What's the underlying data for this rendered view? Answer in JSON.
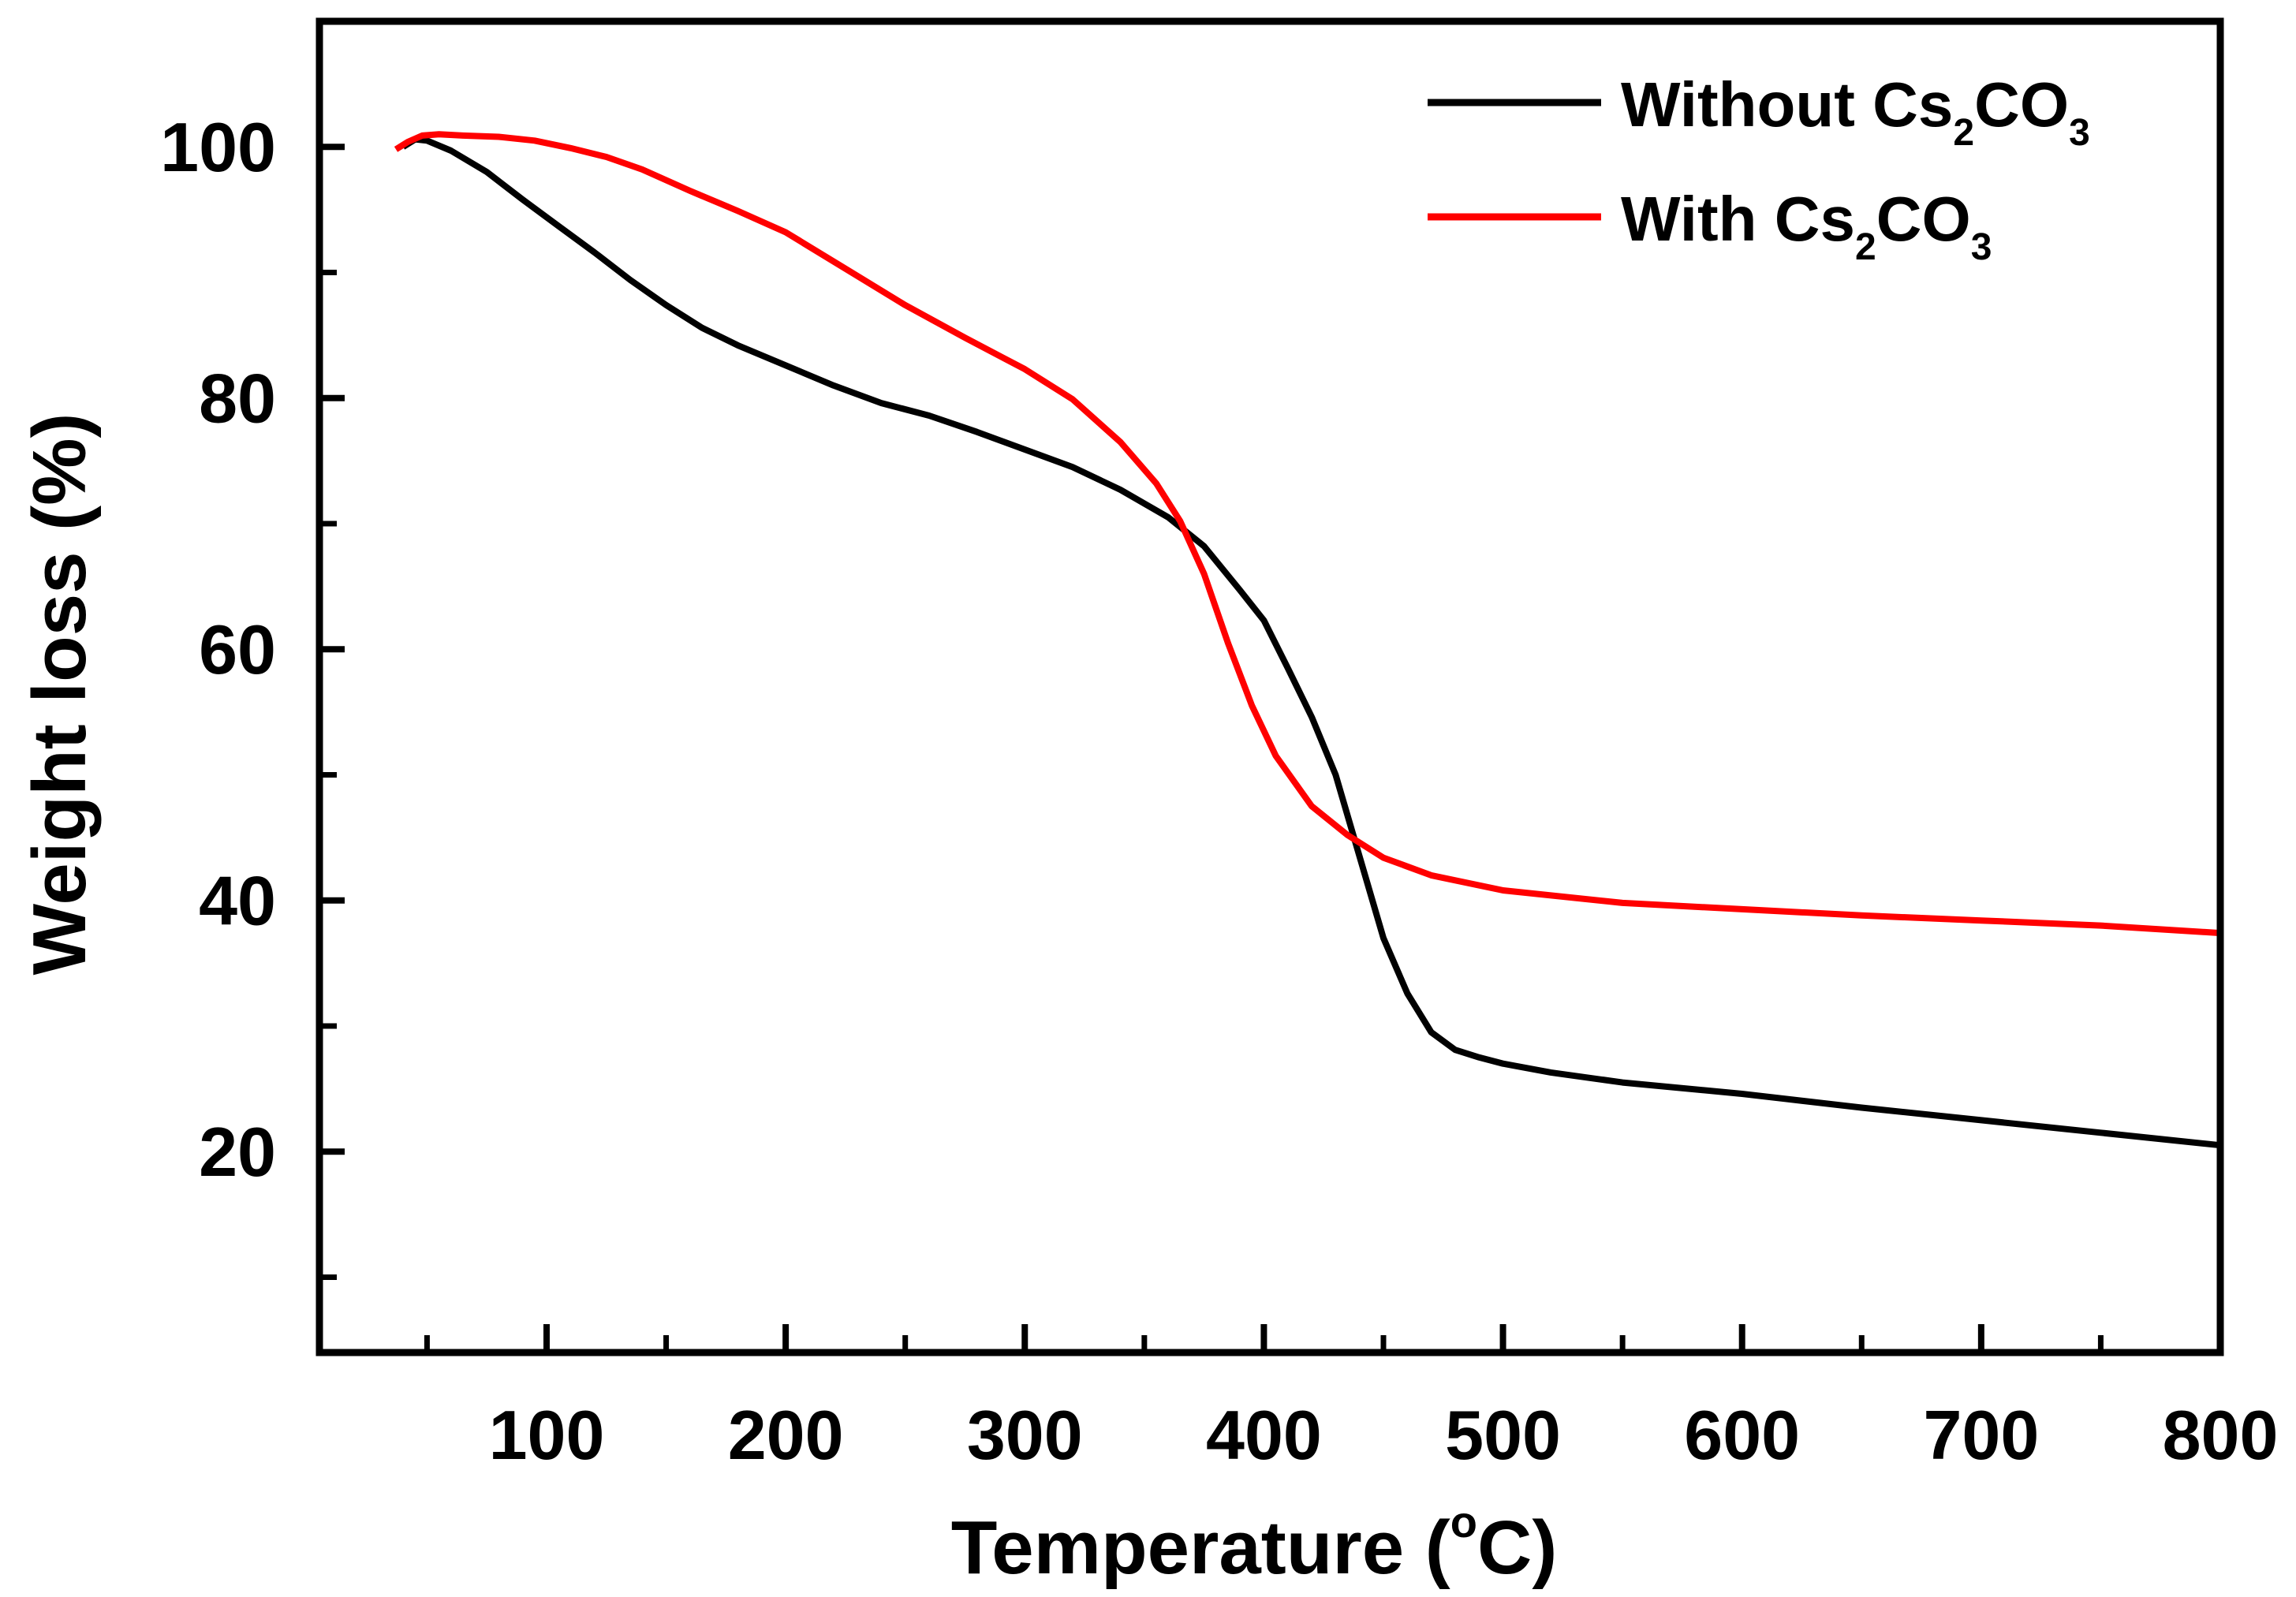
{
  "chart_data": {
    "type": "line",
    "title": "",
    "xlabel": "Temperature (",
    "xlabel_sup": "o",
    "xlabel_tail": "C)",
    "ylabel": "Weight loss (%)",
    "xlim": [
      5,
      800
    ],
    "ylim": [
      4,
      110
    ],
    "x_ticks": [
      100,
      200,
      300,
      400,
      500,
      600,
      700,
      800
    ],
    "x_minor_ticks": [
      50,
      150,
      250,
      350,
      450,
      550,
      650,
      750
    ],
    "y_ticks": [
      20,
      40,
      60,
      80,
      100
    ],
    "y_minor_ticks": [
      10,
      30,
      50,
      70,
      90
    ],
    "grid": false,
    "legend_position": "top-right",
    "series": [
      {
        "name": "Without Cs2CO3",
        "legend_main": "Without Cs",
        "legend_sub": "2",
        "legend_mid": "CO",
        "legend_sub2": "3",
        "color": "#000000",
        "x": [
          40,
          45,
          50,
          60,
          75,
          90,
          105,
          120,
          135,
          150,
          165,
          180,
          200,
          220,
          240,
          260,
          280,
          300,
          320,
          340,
          360,
          375,
          390,
          400,
          410,
          420,
          430,
          440,
          450,
          460,
          470,
          480,
          490,
          500,
          520,
          550,
          600,
          650,
          700,
          750,
          800
        ],
        "y": [
          100,
          100.6,
          100.5,
          99.7,
          98,
          95.8,
          93.7,
          91.6,
          89.4,
          87.4,
          85.6,
          84.2,
          82.6,
          81,
          79.6,
          78.6,
          77.3,
          75.9,
          74.5,
          72.7,
          70.5,
          68.2,
          64.7,
          62.3,
          58.5,
          54.6,
          50,
          43.5,
          37,
          32.6,
          29.5,
          28.1,
          27.5,
          27,
          26.3,
          25.5,
          24.6,
          23.5,
          22.5,
          21.5,
          20.5
        ]
      },
      {
        "name": "With Cs2CO3",
        "legend_main": "With Cs",
        "legend_sub": "2",
        "legend_mid": "CO",
        "legend_sub2": "3",
        "color": "#ff0000",
        "x": [
          37,
          42,
          48,
          55,
          65,
          80,
          95,
          110,
          125,
          140,
          160,
          180,
          200,
          225,
          250,
          275,
          300,
          320,
          340,
          355,
          365,
          375,
          385,
          395,
          405,
          420,
          435,
          450,
          470,
          500,
          550,
          600,
          650,
          700,
          750,
          800
        ],
        "y": [
          99.8,
          100.4,
          100.9,
          101,
          100.9,
          100.8,
          100.5,
          99.9,
          99.2,
          98.2,
          96.5,
          94.9,
          93.2,
          90.3,
          87.4,
          84.8,
          82.3,
          79.9,
          76.5,
          73.2,
          70.2,
          66,
          60.5,
          55.5,
          51.5,
          47.5,
          45.2,
          43.4,
          42,
          40.8,
          39.8,
          39.3,
          38.8,
          38.4,
          38,
          37.4
        ]
      }
    ]
  }
}
